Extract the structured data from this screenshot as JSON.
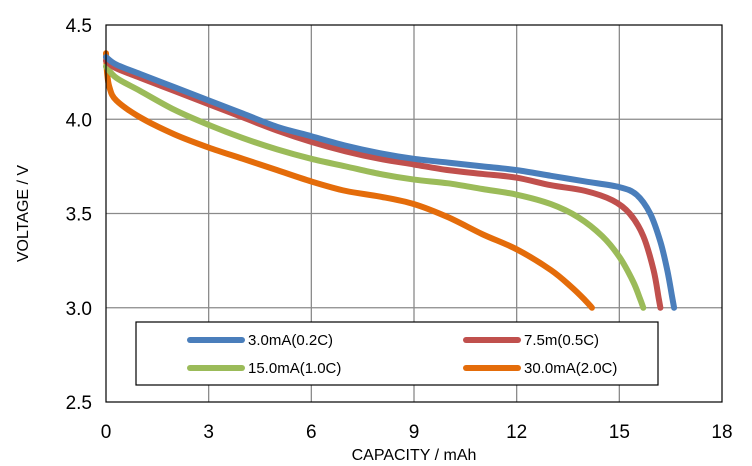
{
  "chart_data": {
    "type": "line",
    "title": "",
    "xlabel": "CAPACITY / mAh",
    "ylabel": "VOLTAGE / V",
    "xlim": [
      0,
      18
    ],
    "ylim": [
      2.5,
      4.5
    ],
    "x_ticks": [
      "0",
      "3",
      "6",
      "9",
      "12",
      "15",
      "18"
    ],
    "y_ticks": [
      "2.5",
      "3.0",
      "3.5",
      "4.0",
      "4.5"
    ],
    "grid": true,
    "legend_position": "bottom inside plot",
    "series": [
      {
        "name": "3.0mA(0.2C)",
        "color": "#4a7ebb",
        "points": [
          [
            0,
            4.33
          ],
          [
            0.3,
            4.29
          ],
          [
            1,
            4.24
          ],
          [
            2,
            4.17
          ],
          [
            3,
            4.1
          ],
          [
            4,
            4.03
          ],
          [
            5,
            3.96
          ],
          [
            6,
            3.91
          ],
          [
            7,
            3.86
          ],
          [
            8,
            3.82
          ],
          [
            9,
            3.79
          ],
          [
            10,
            3.77
          ],
          [
            11,
            3.75
          ],
          [
            12,
            3.73
          ],
          [
            13,
            3.7
          ],
          [
            14,
            3.67
          ],
          [
            15,
            3.64
          ],
          [
            15.5,
            3.6
          ],
          [
            15.9,
            3.5
          ],
          [
            16.2,
            3.35
          ],
          [
            16.4,
            3.2
          ],
          [
            16.55,
            3.05
          ],
          [
            16.6,
            3.0
          ]
        ]
      },
      {
        "name": "7.5m(0.5C)",
        "color": "#c0504d",
        "points": [
          [
            0,
            4.31
          ],
          [
            0.3,
            4.27
          ],
          [
            1,
            4.22
          ],
          [
            2,
            4.15
          ],
          [
            3,
            4.08
          ],
          [
            4,
            4.01
          ],
          [
            5,
            3.94
          ],
          [
            6,
            3.88
          ],
          [
            7,
            3.83
          ],
          [
            8,
            3.79
          ],
          [
            9,
            3.76
          ],
          [
            10,
            3.73
          ],
          [
            11,
            3.71
          ],
          [
            12,
            3.69
          ],
          [
            13,
            3.65
          ],
          [
            14,
            3.62
          ],
          [
            14.8,
            3.57
          ],
          [
            15.3,
            3.5
          ],
          [
            15.7,
            3.38
          ],
          [
            16.0,
            3.2
          ],
          [
            16.15,
            3.05
          ],
          [
            16.2,
            3.0
          ]
        ]
      },
      {
        "name": "15.0mA(1.0C)",
        "color": "#9bbb59",
        "points": [
          [
            0,
            4.28
          ],
          [
            0.3,
            4.22
          ],
          [
            1,
            4.15
          ],
          [
            2,
            4.05
          ],
          [
            3,
            3.97
          ],
          [
            4,
            3.9
          ],
          [
            5,
            3.84
          ],
          [
            6,
            3.79
          ],
          [
            7,
            3.75
          ],
          [
            8,
            3.71
          ],
          [
            9,
            3.68
          ],
          [
            10,
            3.66
          ],
          [
            11,
            3.63
          ],
          [
            12,
            3.6
          ],
          [
            13,
            3.55
          ],
          [
            13.8,
            3.48
          ],
          [
            14.5,
            3.38
          ],
          [
            15.0,
            3.27
          ],
          [
            15.4,
            3.14
          ],
          [
            15.6,
            3.05
          ],
          [
            15.7,
            3.0
          ]
        ]
      },
      {
        "name": "30.0mA(2.0C)",
        "color": "#e46c0a",
        "points": [
          [
            0,
            4.35
          ],
          [
            0.03,
            4.25
          ],
          [
            0.1,
            4.17
          ],
          [
            0.3,
            4.1
          ],
          [
            1,
            4.01
          ],
          [
            2,
            3.92
          ],
          [
            3,
            3.85
          ],
          [
            4,
            3.79
          ],
          [
            5,
            3.73
          ],
          [
            6,
            3.67
          ],
          [
            7,
            3.62
          ],
          [
            8,
            3.59
          ],
          [
            9,
            3.55
          ],
          [
            10,
            3.48
          ],
          [
            11,
            3.39
          ],
          [
            12,
            3.31
          ],
          [
            13,
            3.2
          ],
          [
            13.6,
            3.11
          ],
          [
            14.0,
            3.04
          ],
          [
            14.2,
            3.0
          ]
        ]
      }
    ]
  }
}
